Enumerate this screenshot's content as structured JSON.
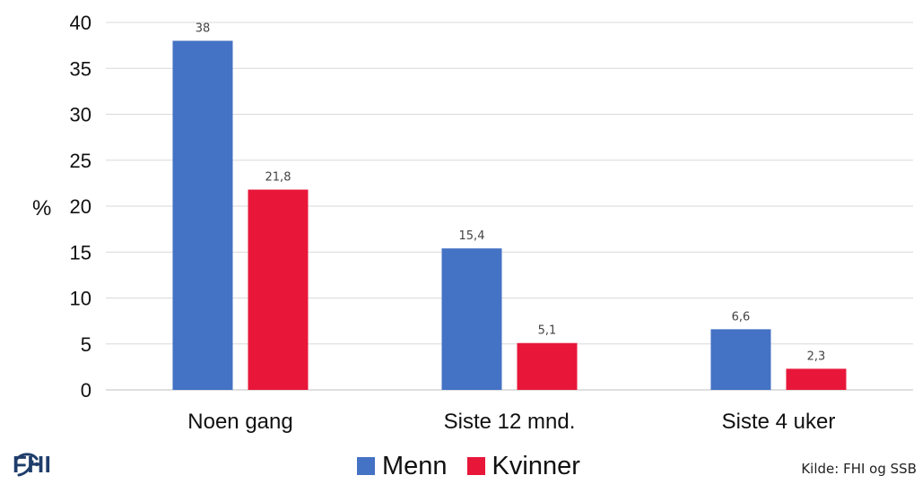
{
  "chart_data": {
    "type": "bar",
    "categories": [
      "Noen gang",
      "Siste 12 mnd.",
      "Siste 4 uker"
    ],
    "series": [
      {
        "name": "Menn",
        "values": [
          38,
          15.4,
          6.6
        ],
        "labels": [
          "38",
          "15,4",
          "6,6"
        ],
        "color": "#4472c4"
      },
      {
        "name": "Kvinner",
        "values": [
          21.8,
          5.1,
          2.3
        ],
        "labels": [
          "21,8",
          "5,1",
          "2,3"
        ],
        "color": "#e8173a"
      }
    ],
    "ylabel": "%",
    "ylim": [
      0,
      40
    ],
    "yticks": [
      0,
      5,
      10,
      15,
      20,
      25,
      30,
      35,
      40
    ],
    "grid": true,
    "legend": "bottom-center"
  },
  "source": "Kilde: FHI og SSB",
  "logo": {
    "text": "FHI",
    "icon": "fhi-logo-icon"
  }
}
